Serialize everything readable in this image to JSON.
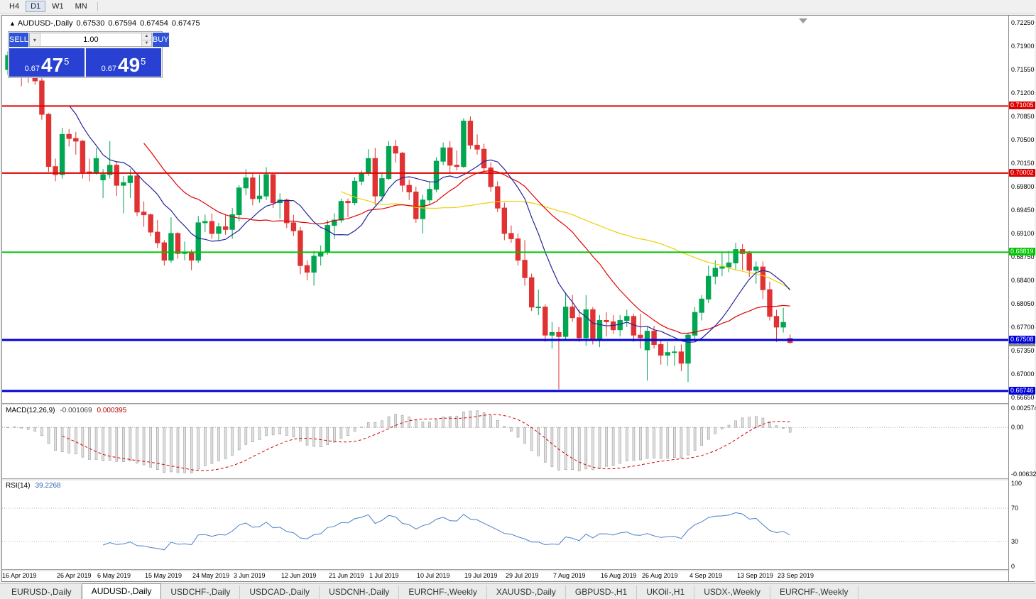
{
  "toolbar": {
    "timeframes": [
      "H4",
      "D1",
      "W1",
      "MN"
    ],
    "active": "D1"
  },
  "chart_header": {
    "collapse_icon": "▲",
    "title": "AUDUSD-,Daily",
    "open": "0.67530",
    "high": "0.67594",
    "low": "0.67454",
    "close": "0.67475"
  },
  "trade_panel": {
    "sell_label": "SELL",
    "buy_label": "BUY",
    "volume": "1.00",
    "dropdown_icon": "▾",
    "spin_up_icon": "▲",
    "spin_down_icon": "▼",
    "sell_price_prefix": "0.67",
    "sell_price_main": "47",
    "sell_price_pip": "5",
    "buy_price_prefix": "0.67",
    "buy_price_main": "49",
    "buy_price_pip": "5"
  },
  "chart_data": {
    "type": "candlestick",
    "symbol": "AUDUSD",
    "timeframe": "Daily",
    "bull_color": "#00a651",
    "bear_color": "#e03232",
    "y_axis_range": [
      0.6656,
      0.7236
    ],
    "y_ticks": [
      "0.72250",
      "0.71900",
      "0.71550",
      "0.71200",
      "0.70850",
      "0.70500",
      "0.70150",
      "0.69800",
      "0.69450",
      "0.69100",
      "0.68750",
      "0.68400",
      "0.68050",
      "0.67700",
      "0.67350",
      "0.67000",
      "0.66650"
    ],
    "x_tick_labels": [
      {
        "i": 0,
        "label": "16 Apr 2019"
      },
      {
        "i": 8,
        "label": "26 Apr 2019"
      },
      {
        "i": 14,
        "label": "6 May 2019"
      },
      {
        "i": 21,
        "label": "15 May 2019"
      },
      {
        "i": 28,
        "label": "24 May 2019"
      },
      {
        "i": 34,
        "label": "3 Jun 2019"
      },
      {
        "i": 41,
        "label": "12 Jun 2019"
      },
      {
        "i": 48,
        "label": "21 Jun 2019"
      },
      {
        "i": 54,
        "label": "1 Jul 2019"
      },
      {
        "i": 61,
        "label": "10 Jul 2019"
      },
      {
        "i": 68,
        "label": "19 Jul 2019"
      },
      {
        "i": 74,
        "label": "29 Jul 2019"
      },
      {
        "i": 81,
        "label": "7 Aug 2019"
      },
      {
        "i": 88,
        "label": "16 Aug 2019"
      },
      {
        "i": 94,
        "label": "26 Aug 2019"
      },
      {
        "i": 101,
        "label": "4 Sep 2019"
      },
      {
        "i": 108,
        "label": "13 Sep 2019"
      },
      {
        "i": 114,
        "label": "23 Sep 2019"
      }
    ],
    "h_lines": [
      {
        "price": 0.71005,
        "label": "0.71005",
        "color": "#e00000",
        "width": 2
      },
      {
        "price": 0.70002,
        "label": "0.70002",
        "color": "#e00000",
        "width": 2
      },
      {
        "price": 0.68819,
        "label": "0.68819",
        "color": "#00c400",
        "width": 2
      },
      {
        "price": 0.67508,
        "label": "0.67508",
        "color": "#0000dc",
        "width": 3
      },
      {
        "price": 0.66746,
        "label": "0.66746",
        "color": "#0000dc",
        "width": 3
      }
    ],
    "current_price": {
      "label": "0.67475",
      "price": 0.67475,
      "color": "#8a8a8a"
    },
    "moving_averages": [
      {
        "period": 50,
        "color": "#eed000"
      },
      {
        "period": 21,
        "color": "#e00000"
      },
      {
        "period": 10,
        "color": "#24249a"
      }
    ],
    "candles": [
      [
        0.7155,
        0.7182,
        0.7147,
        0.7176
      ],
      [
        0.7176,
        0.7196,
        0.7168,
        0.7188
      ],
      [
        0.7188,
        0.719,
        0.713,
        0.7155
      ],
      [
        0.7155,
        0.716,
        0.7135,
        0.715
      ],
      [
        0.715,
        0.716,
        0.7132,
        0.7138
      ],
      [
        0.7138,
        0.7142,
        0.708,
        0.7088
      ],
      [
        0.7088,
        0.709,
        0.7002,
        0.701
      ],
      [
        0.701,
        0.7022,
        0.6988,
        0.6998
      ],
      [
        0.6998,
        0.7068,
        0.6992,
        0.7058
      ],
      [
        0.7058,
        0.7066,
        0.704,
        0.7052
      ],
      [
        0.7052,
        0.7062,
        0.7028,
        0.7048
      ],
      [
        0.7048,
        0.705,
        0.6992,
        0.7002
      ],
      [
        0.7002,
        0.7022,
        0.6988,
        0.7
      ],
      [
        0.7,
        0.7038,
        0.6998,
        0.7022
      ],
      [
        0.699,
        0.7006,
        0.6963,
        0.6998
      ],
      [
        0.6998,
        0.7048,
        0.6992,
        0.7012
      ],
      [
        0.7012,
        0.7018,
        0.6966,
        0.6982
      ],
      [
        0.6982,
        0.6996,
        0.694,
        0.6986
      ],
      [
        0.6986,
        0.7006,
        0.6963,
        0.6996
      ],
      [
        0.6996,
        0.7,
        0.6936,
        0.6942
      ],
      [
        0.6942,
        0.6958,
        0.692,
        0.6938
      ],
      [
        0.6938,
        0.694,
        0.6906,
        0.6912
      ],
      [
        0.6912,
        0.693,
        0.6888,
        0.6896
      ],
      [
        0.6896,
        0.69,
        0.6862,
        0.687
      ],
      [
        0.687,
        0.6934,
        0.6866,
        0.691
      ],
      [
        0.691,
        0.6912,
        0.6872,
        0.688
      ],
      [
        0.688,
        0.6898,
        0.687,
        0.6882
      ],
      [
        0.6882,
        0.6886,
        0.6855,
        0.687
      ],
      [
        0.687,
        0.6936,
        0.6866,
        0.6926
      ],
      [
        0.6926,
        0.6938,
        0.6912,
        0.6928
      ],
      [
        0.6928,
        0.694,
        0.6902,
        0.691
      ],
      [
        0.691,
        0.6926,
        0.6898,
        0.692
      ],
      [
        0.692,
        0.6938,
        0.6908,
        0.6916
      ],
      [
        0.6916,
        0.6948,
        0.6902,
        0.6938
      ],
      [
        0.6938,
        0.6982,
        0.6928,
        0.6978
      ],
      [
        0.6978,
        0.7006,
        0.6967,
        0.6993
      ],
      [
        0.6993,
        0.7,
        0.6952,
        0.6962
      ],
      [
        0.6962,
        0.6998,
        0.6956,
        0.6966
      ],
      [
        0.6966,
        0.7009,
        0.696,
        0.6998
      ],
      [
        0.6998,
        0.7,
        0.6948,
        0.6956
      ],
      [
        0.6956,
        0.697,
        0.6932,
        0.696
      ],
      [
        0.696,
        0.6962,
        0.6918,
        0.6926
      ],
      [
        0.6926,
        0.6938,
        0.6906,
        0.6914
      ],
      [
        0.6914,
        0.692,
        0.6849,
        0.6862
      ],
      [
        0.6862,
        0.687,
        0.684,
        0.6852
      ],
      [
        0.6852,
        0.6884,
        0.6832,
        0.6876
      ],
      [
        0.6876,
        0.6892,
        0.6862,
        0.6882
      ],
      [
        0.6882,
        0.693,
        0.6878,
        0.6922
      ],
      [
        0.6922,
        0.694,
        0.6902,
        0.693
      ],
      [
        0.693,
        0.6962,
        0.6926,
        0.6958
      ],
      [
        0.6958,
        0.6962,
        0.6934,
        0.6956
      ],
      [
        0.6956,
        0.6994,
        0.6952,
        0.6988
      ],
      [
        0.6988,
        0.7004,
        0.6982,
        0.7
      ],
      [
        0.7,
        0.7036,
        0.6996,
        0.7022
      ],
      [
        0.7022,
        0.7038,
        0.6952,
        0.6966
      ],
      [
        0.6966,
        0.7,
        0.6958,
        0.6992
      ],
      [
        0.6992,
        0.7048,
        0.699,
        0.704
      ],
      [
        0.704,
        0.705,
        0.7016,
        0.703
      ],
      [
        0.703,
        0.7032,
        0.6972,
        0.6982
      ],
      [
        0.6982,
        0.699,
        0.696,
        0.6972
      ],
      [
        0.6972,
        0.698,
        0.6926,
        0.6932
      ],
      [
        0.6932,
        0.6968,
        0.691,
        0.696
      ],
      [
        0.696,
        0.6988,
        0.6952,
        0.6976
      ],
      [
        0.6976,
        0.7024,
        0.6972,
        0.7018
      ],
      [
        0.7018,
        0.7046,
        0.7012,
        0.7038
      ],
      [
        0.7038,
        0.7048,
        0.7,
        0.7012
      ],
      [
        0.7012,
        0.7034,
        0.7004,
        0.701
      ],
      [
        0.701,
        0.7082,
        0.7008,
        0.7078
      ],
      [
        0.7078,
        0.7085,
        0.7036,
        0.7042
      ],
      [
        0.7042,
        0.7058,
        0.7028,
        0.7036
      ],
      [
        0.7036,
        0.7044,
        0.7002,
        0.7008
      ],
      [
        0.7008,
        0.7016,
        0.6972,
        0.698
      ],
      [
        0.698,
        0.6988,
        0.6942,
        0.6948
      ],
      [
        0.6948,
        0.6956,
        0.69,
        0.691
      ],
      [
        0.691,
        0.6922,
        0.6896,
        0.6902
      ],
      [
        0.6902,
        0.691,
        0.6862,
        0.687
      ],
      [
        0.687,
        0.69,
        0.6832,
        0.6844
      ],
      [
        0.6844,
        0.685,
        0.6794,
        0.68
      ],
      [
        0.68,
        0.6826,
        0.6788,
        0.68
      ],
      [
        0.68,
        0.6804,
        0.6748,
        0.6758
      ],
      [
        0.6758,
        0.6778,
        0.6738,
        0.6762
      ],
      [
        0.6762,
        0.677,
        0.6677,
        0.6756
      ],
      [
        0.6756,
        0.6822,
        0.6752,
        0.68
      ],
      [
        0.68,
        0.6818,
        0.6778,
        0.6784
      ],
      [
        0.6784,
        0.6796,
        0.6748,
        0.6754
      ],
      [
        0.6754,
        0.6818,
        0.6742,
        0.6796
      ],
      [
        0.6796,
        0.68,
        0.6744,
        0.675
      ],
      [
        0.675,
        0.6788,
        0.674,
        0.678
      ],
      [
        0.678,
        0.6792,
        0.6756,
        0.6778
      ],
      [
        0.6778,
        0.6788,
        0.676,
        0.6766
      ],
      [
        0.6766,
        0.6788,
        0.6756,
        0.678
      ],
      [
        0.678,
        0.6796,
        0.677,
        0.6786
      ],
      [
        0.6786,
        0.679,
        0.6748,
        0.6758
      ],
      [
        0.6758,
        0.679,
        0.6738,
        0.6754
      ],
      [
        0.6736,
        0.677,
        0.669,
        0.6764
      ],
      [
        0.6764,
        0.6772,
        0.6738,
        0.6744
      ],
      [
        0.6744,
        0.6752,
        0.6714,
        0.6728
      ],
      [
        0.6728,
        0.6748,
        0.6712,
        0.6732
      ],
      [
        0.6732,
        0.6742,
        0.6712,
        0.6733
      ],
      [
        0.6733,
        0.6744,
        0.6704,
        0.6716
      ],
      [
        0.6716,
        0.6762,
        0.6688,
        0.6758
      ],
      [
        0.6758,
        0.68,
        0.6752,
        0.6792
      ],
      [
        0.6792,
        0.6818,
        0.678,
        0.6812
      ],
      [
        0.6812,
        0.6862,
        0.6806,
        0.6846
      ],
      [
        0.6846,
        0.687,
        0.6834,
        0.6858
      ],
      [
        0.6858,
        0.6882,
        0.6846,
        0.686
      ],
      [
        0.686,
        0.6884,
        0.6852,
        0.6866
      ],
      [
        0.6866,
        0.6896,
        0.6856,
        0.6886
      ],
      [
        0.6886,
        0.6894,
        0.6855,
        0.688
      ],
      [
        0.688,
        0.6884,
        0.6845,
        0.6855
      ],
      [
        0.6855,
        0.6868,
        0.6835,
        0.686
      ],
      [
        0.686,
        0.6868,
        0.6812,
        0.6826
      ],
      [
        0.6826,
        0.6838,
        0.678,
        0.6786
      ],
      [
        0.6786,
        0.6796,
        0.6748,
        0.677
      ],
      [
        0.677,
        0.6799,
        0.6762,
        0.6777
      ],
      [
        0.6753,
        0.6759,
        0.6745,
        0.6747
      ]
    ]
  },
  "indicators": {
    "macd": {
      "label": "MACD(12,26,9)",
      "value_main": "-0.001069",
      "value_signal": "0.000395",
      "params": [
        12,
        26,
        9
      ],
      "axis_max": "0.002574",
      "axis_zero": "0.00",
      "axis_min": "-0.006320",
      "scale_max": 0.002574,
      "scale_min": -0.00632,
      "histogram_fill": "#e0e0e0",
      "histogram_stroke": "#9a9a9a",
      "signal_color": "#d40000"
    },
    "rsi": {
      "label": "RSI(14)",
      "value": "39.2268",
      "period": 14,
      "levels": [
        100,
        70,
        30,
        0
      ],
      "line_color": "#4a7ec8"
    }
  },
  "tabs": {
    "active_index": 1,
    "items": [
      "EURUSD-,Daily",
      "AUDUSD-,Daily",
      "USDCHF-,Daily",
      "USDCAD-,Daily",
      "USDCNH-,Daily",
      "EURCHF-,Weekly",
      "XAUUSD-,Daily",
      "GBPUSD-,H1",
      "UKOil-,H1",
      "USDX-,Weekly",
      "EURCHF-,Weekly"
    ]
  }
}
